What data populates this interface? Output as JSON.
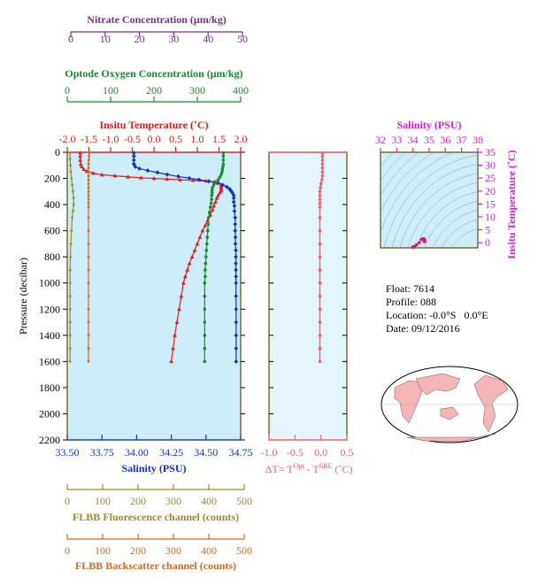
{
  "colors": {
    "nitrate": "#7b2d8e",
    "oxygen": "#1a8a2e",
    "temperature": "#e11a1a",
    "salinity": "#1530c8",
    "fluorescence": "#9a8a2a",
    "backscatter": "#d2691e",
    "deltaT": "#f06070",
    "ts_axis": "#d81ed8",
    "panel_bg": "#cdeef8",
    "axis_dark": "#5a4a0a",
    "land": "#f4b6b6",
    "ocean": "#ffffff"
  },
  "info": {
    "float_label": "Float:",
    "float": "7614",
    "profile_label": "Profile:",
    "profile": "088",
    "location_label": "Location:",
    "location": "-0.0°S   0.0°E",
    "date_label": "Date:",
    "date": "09/12/2016"
  },
  "chart_data": [
    {
      "id": "main-profile",
      "type": "line",
      "ylabel": "Pressure (decibar)",
      "ylim": [
        2200,
        0
      ],
      "yticks": [
        0,
        200,
        400,
        600,
        800,
        1000,
        1200,
        1400,
        1600,
        1800,
        2000,
        2200
      ],
      "axes": {
        "nitrate": {
          "label": "Nitrate Concentration (μm/kg)",
          "lim": [
            0,
            50
          ],
          "ticks": [
            0,
            10,
            20,
            30,
            40,
            50
          ]
        },
        "oxygen": {
          "label": "Optode Oxygen Concentration (μm/kg)",
          "lim": [
            0,
            400
          ],
          "ticks": [
            0,
            100,
            200,
            300,
            400
          ]
        },
        "temperature": {
          "label": "Insitu Temperature (˚C)",
          "lim": [
            -2.0,
            2.0
          ],
          "ticks": [
            -2.0,
            -1.5,
            -1.0,
            -0.5,
            0.0,
            0.5,
            1.0,
            1.5,
            2.0
          ],
          "ticklabels": [
            "-2.0",
            "-1.5",
            "-1.0",
            "-0.5",
            "0.0",
            "0.5",
            "1.0",
            "1.5",
            "2.0"
          ]
        },
        "salinity": {
          "label": "Salinity (PSU)",
          "lim": [
            33.5,
            34.75
          ],
          "ticks": [
            33.5,
            33.75,
            34.0,
            34.25,
            34.5,
            34.75
          ],
          "ticklabels": [
            "33.50",
            "33.75",
            "34.00",
            "34.25",
            "34.50",
            "34.75"
          ]
        },
        "fluorescence": {
          "label": "FLBB Fluorescence channel (counts)",
          "lim": [
            0,
            500
          ],
          "ticks": [
            0,
            100,
            200,
            300,
            400,
            500
          ]
        },
        "backscatter": {
          "label": "FLBB Backscatter channel (counts)",
          "lim": [
            0,
            500
          ],
          "ticks": [
            0,
            100,
            200,
            300,
            400,
            500
          ]
        }
      },
      "series": [
        {
          "key": "temperature",
          "marker": "triangle",
          "points": [
            [
              -1.7,
              5
            ],
            [
              -1.7,
              30
            ],
            [
              -1.7,
              60
            ],
            [
              -1.69,
              90
            ],
            [
              -1.67,
              110
            ],
            [
              -1.62,
              130
            ],
            [
              -1.55,
              145
            ],
            [
              -1.4,
              160
            ],
            [
              -1.2,
              172
            ],
            [
              -0.9,
              180
            ],
            [
              -0.6,
              188
            ],
            [
              -0.3,
              195
            ],
            [
              0.0,
              200
            ],
            [
              0.3,
              205
            ],
            [
              0.6,
              210
            ],
            [
              0.9,
              215
            ],
            [
              1.2,
              220
            ],
            [
              1.4,
              226
            ],
            [
              1.5,
              235
            ],
            [
              1.55,
              250
            ],
            [
              1.55,
              265
            ],
            [
              1.55,
              280
            ],
            [
              1.55,
              295
            ],
            [
              1.52,
              310
            ],
            [
              1.48,
              330
            ],
            [
              1.45,
              350
            ],
            [
              1.42,
              380
            ],
            [
              1.38,
              410
            ],
            [
              1.35,
              440
            ],
            [
              1.3,
              480
            ],
            [
              1.24,
              520
            ],
            [
              1.18,
              560
            ],
            [
              1.12,
              600
            ],
            [
              1.06,
              650
            ],
            [
              1.0,
              700
            ],
            [
              0.94,
              750
            ],
            [
              0.88,
              800
            ],
            [
              0.82,
              850
            ],
            [
              0.77,
              900
            ],
            [
              0.72,
              950
            ],
            [
              0.68,
              1000
            ],
            [
              0.63,
              1100
            ],
            [
              0.58,
              1200
            ],
            [
              0.53,
              1300
            ],
            [
              0.48,
              1400
            ],
            [
              0.44,
              1500
            ],
            [
              0.4,
              1600
            ]
          ]
        },
        {
          "key": "salinity",
          "marker": "diamond",
          "points": [
            [
              33.98,
              5
            ],
            [
              33.98,
              30
            ],
            [
              33.98,
              60
            ],
            [
              33.98,
              90
            ],
            [
              33.99,
              110
            ],
            [
              34.02,
              125
            ],
            [
              34.08,
              140
            ],
            [
              34.15,
              155
            ],
            [
              34.22,
              170
            ],
            [
              34.3,
              185
            ],
            [
              34.38,
              198
            ],
            [
              34.45,
              210
            ],
            [
              34.52,
              222
            ],
            [
              34.58,
              235
            ],
            [
              34.62,
              250
            ],
            [
              34.65,
              265
            ],
            [
              34.67,
              280
            ],
            [
              34.68,
              295
            ],
            [
              34.69,
              310
            ],
            [
              34.7,
              330
            ],
            [
              34.7,
              350
            ],
            [
              34.7,
              380
            ],
            [
              34.705,
              410
            ],
            [
              34.705,
              450
            ],
            [
              34.71,
              500
            ],
            [
              34.71,
              550
            ],
            [
              34.71,
              600
            ],
            [
              34.712,
              650
            ],
            [
              34.712,
              700
            ],
            [
              34.715,
              750
            ],
            [
              34.715,
              800
            ],
            [
              34.715,
              850
            ],
            [
              34.715,
              900
            ],
            [
              34.716,
              950
            ],
            [
              34.716,
              1000
            ],
            [
              34.716,
              1100
            ],
            [
              34.717,
              1200
            ],
            [
              34.717,
              1300
            ],
            [
              34.717,
              1400
            ],
            [
              34.717,
              1500
            ],
            [
              34.717,
              1600
            ]
          ]
        },
        {
          "key": "oxygen",
          "marker": "circle",
          "points": [
            [
              360,
              5
            ],
            [
              360,
              30
            ],
            [
              360,
              60
            ],
            [
              360,
              90
            ],
            [
              359,
              110
            ],
            [
              358,
              130
            ],
            [
              357,
              150
            ],
            [
              355,
              170
            ],
            [
              352,
              190
            ],
            [
              348,
              210
            ],
            [
              343,
              230
            ],
            [
              338,
              250
            ],
            [
              335,
              270
            ],
            [
              334,
              290
            ],
            [
              334,
              310
            ],
            [
              333,
              330
            ],
            [
              333,
              360
            ],
            [
              332,
              390
            ],
            [
              330,
              420
            ],
            [
              328,
              460
            ],
            [
              326,
              500
            ],
            [
              325,
              550
            ],
            [
              324,
              600
            ],
            [
              323,
              650
            ],
            [
              322,
              700
            ],
            [
              321,
              750
            ],
            [
              320,
              800
            ],
            [
              319,
              850
            ],
            [
              318,
              900
            ],
            [
              318,
              950
            ],
            [
              317,
              1000
            ],
            [
              317,
              1100
            ],
            [
              317,
              1200
            ],
            [
              317,
              1300
            ],
            [
              317,
              1400
            ],
            [
              317,
              1500
            ],
            [
              317,
              1600
            ]
          ]
        },
        {
          "key": "nitrate",
          "marker": "circle",
          "points": []
        },
        {
          "key": "fluorescence",
          "marker": "circle",
          "points": [
            [
              8,
              5
            ],
            [
              8,
              50
            ],
            [
              9,
              100
            ],
            [
              10,
              150
            ],
            [
              12,
              200
            ],
            [
              14,
              250
            ],
            [
              16,
              300
            ],
            [
              18,
              350
            ],
            [
              18,
              400
            ],
            [
              16,
              450
            ],
            [
              14,
              500
            ],
            [
              12,
              600
            ],
            [
              10,
              700
            ],
            [
              9,
              800
            ],
            [
              8,
              900
            ],
            [
              8,
              1000
            ],
            [
              8,
              1100
            ],
            [
              8,
              1200
            ],
            [
              8,
              1300
            ],
            [
              8,
              1400
            ],
            [
              8,
              1500
            ],
            [
              8,
              1600
            ]
          ]
        },
        {
          "key": "backscatter",
          "marker": "circle",
          "points": [
            [
              62,
              5
            ],
            [
              62,
              30
            ],
            [
              61,
              60
            ],
            [
              60,
              90
            ],
            [
              60,
              120
            ],
            [
              60,
              150
            ],
            [
              60,
              180
            ],
            [
              60,
              210
            ],
            [
              60,
              240
            ],
            [
              60,
              270
            ],
            [
              60,
              300
            ],
            [
              60,
              330
            ],
            [
              60,
              360
            ],
            [
              60,
              390
            ],
            [
              60,
              420
            ],
            [
              60,
              500
            ],
            [
              60,
              600
            ],
            [
              60,
              700
            ],
            [
              60,
              800
            ],
            [
              60,
              900
            ],
            [
              60,
              1000
            ],
            [
              60,
              1100
            ],
            [
              60,
              1200
            ],
            [
              60,
              1300
            ],
            [
              60,
              1400
            ],
            [
              60,
              1500
            ],
            [
              60,
              1600
            ]
          ]
        }
      ]
    },
    {
      "id": "delta-t",
      "type": "line",
      "xlim": [
        -1.0,
        0.5
      ],
      "xticks": [
        -1.0,
        -0.5,
        0.0,
        0.5
      ],
      "xticklabels": [
        "-1.0",
        "-0.5",
        "0.0",
        "0.5"
      ],
      "xlabel": {
        "prefix": "ΔT= T",
        "sup1": "Opt",
        "mid": " - T",
        "sup2": "SBE",
        "suffix": " (˚C)"
      },
      "ylim": [
        2200,
        0
      ],
      "series": [
        {
          "key": "deltaT",
          "marker": "circle",
          "points": [
            [
              0.03,
              5
            ],
            [
              0.03,
              30
            ],
            [
              0.03,
              60
            ],
            [
              0.03,
              90
            ],
            [
              0.03,
              120
            ],
            [
              0.03,
              150
            ],
            [
              0.03,
              180
            ],
            [
              0.02,
              210
            ],
            [
              0.0,
              240
            ],
            [
              -0.01,
              270
            ],
            [
              -0.02,
              300
            ],
            [
              -0.02,
              330
            ],
            [
              -0.02,
              360
            ],
            [
              -0.02,
              390
            ],
            [
              -0.02,
              420
            ],
            [
              -0.02,
              500
            ],
            [
              -0.02,
              600
            ],
            [
              -0.02,
              700
            ],
            [
              -0.02,
              800
            ],
            [
              -0.02,
              900
            ],
            [
              -0.02,
              1000
            ],
            [
              -0.02,
              1100
            ],
            [
              -0.02,
              1200
            ],
            [
              -0.02,
              1300
            ],
            [
              -0.02,
              1400
            ],
            [
              -0.02,
              1500
            ],
            [
              -0.02,
              1600
            ]
          ]
        }
      ]
    },
    {
      "id": "ts-diagram",
      "type": "scatter",
      "title": "Salinity (PSU)",
      "xlim": [
        32,
        38
      ],
      "xticks": [
        32,
        33,
        34,
        35,
        36,
        37,
        38
      ],
      "ylabel": "Insitu Temperature (˚C)",
      "ylim": [
        -2,
        35
      ],
      "yticks": [
        0,
        5,
        10,
        15,
        20,
        25,
        30,
        35
      ],
      "series": [
        {
          "key": "ts",
          "points": [
            [
              34.67,
              1.5
            ],
            [
              34.69,
              1.45
            ],
            [
              34.7,
              1.3
            ],
            [
              34.71,
              1.1
            ],
            [
              34.715,
              0.9
            ],
            [
              34.716,
              0.7
            ],
            [
              34.717,
              0.5
            ],
            [
              34.717,
              0.4
            ],
            [
              34.62,
              1.55
            ],
            [
              34.52,
              1.2
            ],
            [
              34.38,
              0.0
            ],
            [
              34.22,
              -0.8
            ],
            [
              34.1,
              -1.4
            ],
            [
              34.0,
              -1.65
            ],
            [
              33.98,
              -1.7
            ]
          ]
        }
      ]
    }
  ]
}
